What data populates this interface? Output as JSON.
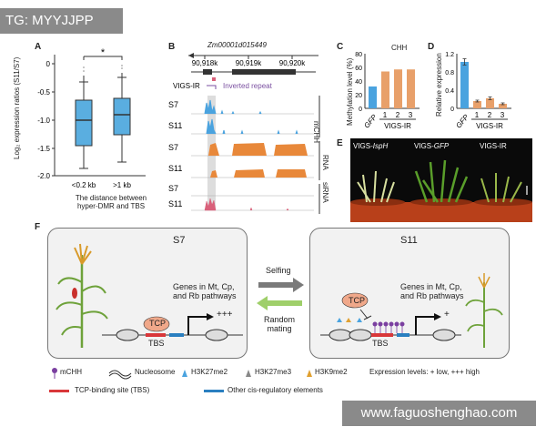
{
  "watermarks": {
    "top": "TG: MYYJJPP",
    "bottom": "www.faguoshenghao.com"
  },
  "panels": {
    "A": {
      "label": "A",
      "ylabel": "Log₂ expression ratios (S11/S7)",
      "yticks": [
        "0",
        "-0.5",
        "-1.0",
        "-1.5",
        "-2.0"
      ],
      "xticks": [
        "<0.2 kb",
        ">1 kb"
      ],
      "xlabel_line1": "The distance between",
      "xlabel_line2": "hyper-DMR and TBS",
      "significance": "*",
      "box_color": "#5aaee0"
    },
    "B": {
      "label": "B",
      "gene": "Zm00001d015449",
      "coords": [
        "90,918k",
        "90,919k",
        "90,920k"
      ],
      "vigs_label": "VIGS-IR",
      "inverted_repeat": "Inverted repeat",
      "tracks": [
        "S7",
        "S11",
        "S7",
        "S11",
        "S7",
        "S11"
      ],
      "track_groups": [
        "mCHH",
        "RNA",
        "siRNA"
      ],
      "colors": {
        "mchh": "#4aa3df",
        "rna": "#e8883a",
        "sirna": "#d9607a",
        "ir": "#7a4fa0"
      }
    },
    "C": {
      "label": "C",
      "title": "CHH",
      "ylabel": "Methylation level (%)",
      "yticks": [
        "80",
        "60",
        "40",
        "20",
        "0"
      ],
      "xticks": [
        "GFP",
        "1",
        "2",
        "3"
      ],
      "group_label": "VIGS-IR"
    },
    "D": {
      "label": "D",
      "ylabel": "Relative expression",
      "yticks": [
        "1.2",
        "0.8",
        "0.4",
        "0"
      ],
      "xticks": [
        "GFP",
        "1",
        "2",
        "3"
      ],
      "group_label": "VIGS-IR"
    },
    "E": {
      "label": "E",
      "labels": [
        "VIGS-",
        "IspH",
        "VIGS-",
        "GFP",
        "VIGS-IR"
      ]
    },
    "F": {
      "label": "F",
      "left_title": "S7",
      "right_title": "S11",
      "genes_line1": "Genes in Mt, Cp,",
      "genes_line2": "and Rb pathways",
      "tcp": "TCP",
      "tbs": "TBS",
      "plus_high": "+++",
      "plus_low": "+",
      "arrow_top": "Selfing",
      "arrow_bottom_line1": "Random",
      "arrow_bottom_line2": "mating"
    },
    "legend": {
      "mchh": "mCHH",
      "nucleosome": "Nucleosome",
      "h3k27me2": "H3K27me2",
      "h3k27me3": "H3K27me3",
      "h3k9me2": "H3K9me2",
      "expr": "Expression levels: + low, +++ high",
      "tbs": "TCP-binding site (TBS)",
      "other": "Other cis-regulatory elements"
    }
  },
  "chart_data": [
    {
      "type": "bar",
      "panel": "C",
      "title": "CHH",
      "categories": [
        "GFP",
        "1",
        "2",
        "3"
      ],
      "values": [
        32,
        54,
        57,
        57
      ],
      "colors": [
        "#4aa3df",
        "#e8a06a",
        "#e8a06a",
        "#e8a06a"
      ],
      "ylabel": "Methylation level (%)",
      "ylim": [
        0,
        80
      ]
    },
    {
      "type": "bar",
      "panel": "D",
      "categories": [
        "GFP",
        "1",
        "2",
        "3"
      ],
      "values": [
        1.02,
        0.16,
        0.22,
        0.1
      ],
      "errors": [
        0.07,
        0.02,
        0.03,
        0.02
      ],
      "colors": [
        "#4aa3df",
        "#e8a06a",
        "#e8a06a",
        "#e8a06a"
      ],
      "ylabel": "Relative expression",
      "ylim": [
        0,
        1.2
      ]
    }
  ]
}
